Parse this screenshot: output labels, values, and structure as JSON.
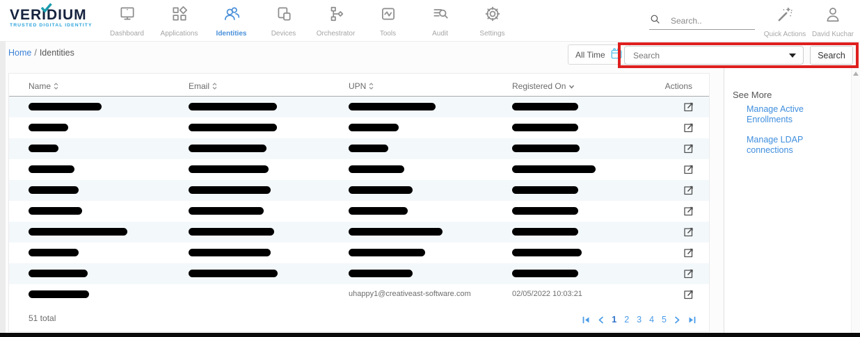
{
  "brand": {
    "name": "VERIDIUM",
    "tagline": "TRUSTED DIGITAL IDENTITY"
  },
  "nav": {
    "items": [
      {
        "label": "Dashboard",
        "icon": "dashboard-monitor-icon",
        "active": false
      },
      {
        "label": "Applications",
        "icon": "applications-grid-icon",
        "active": false
      },
      {
        "label": "Identities",
        "icon": "identities-users-icon",
        "active": true
      },
      {
        "label": "Devices",
        "icon": "devices-icon",
        "active": false
      },
      {
        "label": "Orchestrator",
        "icon": "orchestrator-flow-icon",
        "active": false
      },
      {
        "label": "Tools",
        "icon": "tools-pulse-icon",
        "active": false
      },
      {
        "label": "Audit",
        "icon": "audit-search-lines-icon",
        "active": false
      },
      {
        "label": "Settings",
        "icon": "settings-gear-icon",
        "active": false
      }
    ]
  },
  "topbar": {
    "search_placeholder": "Search..",
    "quick_actions_label": "Quick Actions",
    "user_name": "David Kuchar"
  },
  "breadcrumb": {
    "home": "Home",
    "separator": "/",
    "current": "Identities"
  },
  "filters": {
    "time_range_label": "All Time",
    "search_placeholder": "Search",
    "search_button_label": "Search"
  },
  "table": {
    "columns": [
      {
        "label": "Name",
        "sort": "both"
      },
      {
        "label": "Email",
        "sort": "both"
      },
      {
        "label": "UPN",
        "sort": "both"
      },
      {
        "label": "Registered On",
        "sort": "desc"
      },
      {
        "label": "Actions",
        "sort": "none"
      }
    ],
    "rows": [
      {
        "name_w": 105,
        "email_w": 127,
        "upn_w": 125,
        "reg_w": 95
      },
      {
        "name_w": 57,
        "email_w": 127,
        "upn_w": 72,
        "reg_w": 95
      },
      {
        "name_w": 43,
        "email_w": 112,
        "upn_w": 57,
        "reg_w": 97
      },
      {
        "name_w": 66,
        "email_w": 115,
        "upn_w": 80,
        "reg_w": 120
      },
      {
        "name_w": 72,
        "email_w": 118,
        "upn_w": 92,
        "reg_w": 95
      },
      {
        "name_w": 77,
        "email_w": 108,
        "upn_w": 85,
        "reg_w": 95
      },
      {
        "name_w": 142,
        "email_w": 123,
        "upn_w": 135,
        "reg_w": 95
      },
      {
        "name_w": 72,
        "email_w": 118,
        "upn_w": 110,
        "reg_w": 100
      },
      {
        "name_w": 85,
        "email_w": 128,
        "upn_w": 92,
        "reg_w": 95
      },
      {
        "name_w": 87,
        "upn_text": "uhappy1@creativeast-software.com",
        "reg_text": "02/05/2022 10:03:21"
      }
    ],
    "row_action_icon": "open-external-icon"
  },
  "footer": {
    "total_label": "51 total",
    "pagination": {
      "pages": [
        "1",
        "2",
        "3",
        "4",
        "5"
      ],
      "current_page": "1"
    }
  },
  "see_more": {
    "title": "See More",
    "links": [
      "Manage Active Enrollments",
      "Manage LDAP connections"
    ]
  },
  "colors": {
    "accent_blue": "#4a90d9",
    "link_blue": "#3f8ede",
    "annotation_red": "#de1f1f",
    "calendar_blue": "#58c1ec",
    "alt_row_blue": "#f3f8fb"
  }
}
